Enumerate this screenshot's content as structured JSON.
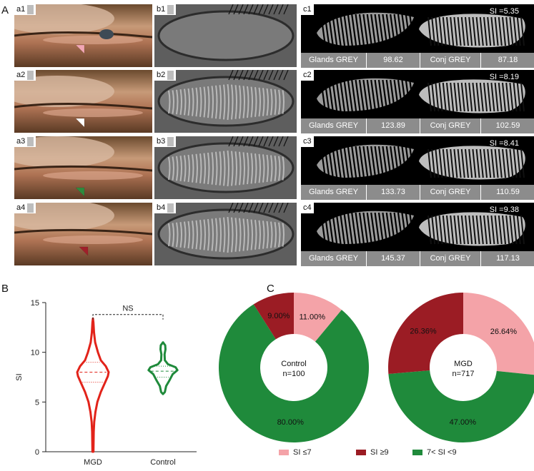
{
  "panels": {
    "A": "A",
    "B": "B",
    "C": "C"
  },
  "a_labels": [
    "a1",
    "a2",
    "a3",
    "a4"
  ],
  "b_labels": [
    "b1",
    "b2",
    "b3",
    "b4"
  ],
  "c_panels": [
    {
      "label": "c1",
      "si": "SI =5.35",
      "glands_label": "Glands GREY",
      "glands_value": "98.62",
      "conj_label": "Conj GREY",
      "conj_value": "87.18"
    },
    {
      "label": "c2",
      "si": "SI =8.19",
      "glands_label": "Glands GREY",
      "glands_value": "123.89",
      "conj_label": "Conj GREY",
      "conj_value": "102.59"
    },
    {
      "label": "c3",
      "si": "SI =8.41",
      "glands_label": "Glands GREY",
      "glands_value": "133.73",
      "conj_label": "Conj GREY",
      "conj_value": "110.59"
    },
    {
      "label": "c4",
      "si": "SI =9.38",
      "glands_label": "Glands GREY",
      "glands_value": "145.37",
      "conj_label": "Conj GREY",
      "conj_value": "117.13"
    }
  ],
  "arrow_colors": [
    "#f2a6b4",
    "#ffffff",
    "#2e8b3e",
    "#a0202a"
  ],
  "chart_data": [
    {
      "type": "violin",
      "ylabel": "SI",
      "ylim": [
        0,
        15
      ],
      "yticks": [
        0,
        5,
        10,
        15
      ],
      "significance": "NS",
      "series": [
        {
          "name": "MGD",
          "color": "#e2231a",
          "min": 0,
          "max": 13.4,
          "q1": 7.0,
          "median": 8.0,
          "q3": 9.0,
          "density": [
            [
              0,
              0.03
            ],
            [
              1,
              0.04
            ],
            [
              2,
              0.05
            ],
            [
              3,
              0.08
            ],
            [
              4,
              0.16
            ],
            [
              5,
              0.28
            ],
            [
              6,
              0.5
            ],
            [
              7,
              0.78
            ],
            [
              7.6,
              0.95
            ],
            [
              8,
              1.0
            ],
            [
              8.6,
              0.82
            ],
            [
              9.2,
              0.5
            ],
            [
              10,
              0.32
            ],
            [
              11,
              0.14
            ],
            [
              12,
              0.07
            ],
            [
              13,
              0.03
            ],
            [
              13.4,
              0.0
            ]
          ]
        },
        {
          "name": "Control",
          "color": "#1f8a3b",
          "min": 5.8,
          "max": 11.0,
          "q1": 7.5,
          "median": 8.1,
          "q3": 8.6,
          "density": [
            [
              5.8,
              0.0
            ],
            [
              6.0,
              0.12
            ],
            [
              6.6,
              0.2
            ],
            [
              7.2,
              0.42
            ],
            [
              7.8,
              0.62
            ],
            [
              8.2,
              0.92
            ],
            [
              8.5,
              0.8
            ],
            [
              8.8,
              0.32
            ],
            [
              9.2,
              0.12
            ],
            [
              9.8,
              0.1
            ],
            [
              10.3,
              0.16
            ],
            [
              10.7,
              0.14
            ],
            [
              11.0,
              0.0
            ]
          ]
        }
      ]
    },
    {
      "type": "pie",
      "title": "Control",
      "subtitle": "n=100",
      "slices": [
        {
          "label": "SI ≤7",
          "value": 11.0,
          "text": "11.00%",
          "color": "#f4a3a8"
        },
        {
          "label": "7< SI <9",
          "value": 80.0,
          "text": "80.00%",
          "color": "#1f8a3b"
        },
        {
          "label": "SI ≥9",
          "value": 9.0,
          "text": "9.00%",
          "color": "#9b1c24"
        }
      ]
    },
    {
      "type": "pie",
      "title": "MGD",
      "subtitle": "n=717",
      "slices": [
        {
          "label": "SI ≤7",
          "value": 26.64,
          "text": "26.64%",
          "color": "#f4a3a8"
        },
        {
          "label": "7< SI <9",
          "value": 47.0,
          "text": "47.00%",
          "color": "#1f8a3b"
        },
        {
          "label": "SI ≥9",
          "value": 26.36,
          "text": "26.36%",
          "color": "#9b1c24"
        }
      ]
    }
  ],
  "legend": [
    {
      "label": "SI ≤7",
      "color": "#f4a3a8"
    },
    {
      "label": "SI ≥9",
      "color": "#9b1c24"
    },
    {
      "label": "7< SI <9",
      "color": "#1f8a3b"
    }
  ]
}
